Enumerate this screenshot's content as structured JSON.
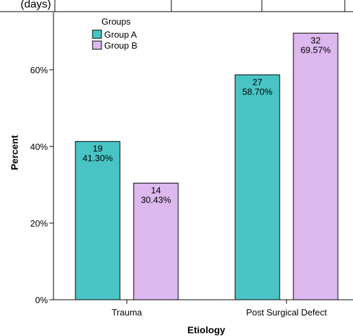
{
  "top_fragment": "(days)",
  "chart_data": {
    "type": "bar",
    "categories": [
      "Trauma",
      "Post Surgical Defect"
    ],
    "series": [
      {
        "name": "Group A",
        "values": [
          41.3,
          58.7
        ],
        "counts": [
          "19",
          "27"
        ],
        "labels": [
          "41.30%",
          "58.70%"
        ],
        "color": "#48c4c4"
      },
      {
        "name": "Group B",
        "values": [
          30.43,
          69.57
        ],
        "counts": [
          "14",
          "32"
        ],
        "labels": [
          "30.43%",
          "69.57%"
        ],
        "color": "#dcb8ee"
      }
    ],
    "xlabel": "Etiology",
    "ylabel": "Percent",
    "ylim": [
      0,
      75
    ],
    "yticks": [
      0,
      20,
      40,
      60
    ],
    "ytick_labels": [
      "0%",
      "20%",
      "40%",
      "60%"
    ],
    "legend_title": "Groups",
    "legend_position": "top-left",
    "grid": false
  }
}
